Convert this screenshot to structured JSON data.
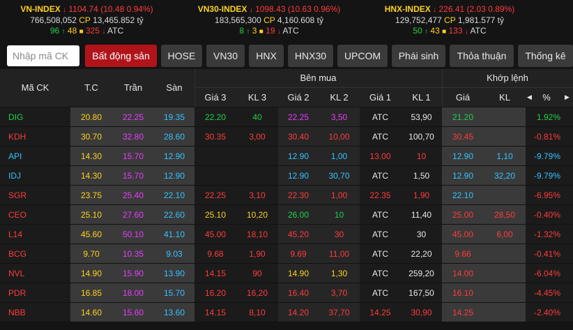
{
  "indices": [
    {
      "name": "VN-INDEX",
      "arrow": "↓",
      "value": "1104.74",
      "change": "(10.48 0.94%)",
      "volume": "766,508,052",
      "cp_label": "CP",
      "amount": "13,465.852 tỷ",
      "up": "96",
      "floor_or_ceil": "48",
      "down": "325",
      "atc": "ATC"
    },
    {
      "name": "VN30-INDEX",
      "arrow": "↓",
      "value": "1098.43",
      "change": "(10.63 0.96%)",
      "volume": "183,565,300",
      "cp_label": "CP",
      "amount": "4,160.608 tỷ",
      "up": "8",
      "floor_or_ceil": "3",
      "down": "19",
      "atc": "ATC"
    },
    {
      "name": "HNX-INDEX",
      "arrow": "↓",
      "value": "226.41",
      "change": "(2.03 0.89%)",
      "volume": "129,752,477",
      "cp_label": "CP",
      "amount": "1,981.577 tỷ",
      "up": "50",
      "floor_or_ceil": "43",
      "down": "133",
      "atc": "ATC"
    }
  ],
  "search": {
    "placeholder": "Nhập mã CK"
  },
  "tabs": [
    "Bất động sản",
    "HOSE",
    "VN30",
    "HNX",
    "HNX30",
    "UPCOM",
    "Phái sinh",
    "Thỏa thuận",
    "Thống kê"
  ],
  "header": {
    "symbol": "Mã CK",
    "ref": "T.C",
    "ceil": "Trần",
    "floor": "Sàn",
    "buy_group": "Bên mua",
    "match_group": "Khớp lệnh",
    "buy_cols": [
      "Giá 3",
      "KL 3",
      "Giá 2",
      "KL 2",
      "Giá 1",
      "KL 1"
    ],
    "match_cols": [
      "Giá",
      "KL",
      "%"
    ]
  },
  "rows": [
    {
      "sym": "DIG",
      "symc": "g",
      "tc": "20.80",
      "tran": "22.25",
      "san": "19.35",
      "g3": "22.20",
      "g3c": "g",
      "k3": "40",
      "k3c": "g",
      "g2": "22.25",
      "g2c": "p",
      "k2": "3,50",
      "k2c": "p",
      "g1": "ATC",
      "g1c": "w",
      "k1": "53,90",
      "k1c": "w",
      "mp": "21.20",
      "mpc": "g",
      "mk": "",
      "mkc": "g",
      "pct": "1.92%",
      "pctc": "g"
    },
    {
      "sym": "KDH",
      "symc": "r",
      "tc": "30.70",
      "tran": "32.80",
      "san": "28.60",
      "g3": "30.35",
      "g3c": "r",
      "k3": "3,00",
      "k3c": "r",
      "g2": "30.40",
      "g2c": "r",
      "k2": "10,00",
      "k2c": "r",
      "g1": "ATC",
      "g1c": "w",
      "k1": "100,70",
      "k1c": "w",
      "mp": "30.45",
      "mpc": "r",
      "mk": "",
      "mkc": "r",
      "pct": "-0.81%",
      "pctc": "r"
    },
    {
      "sym": "API",
      "symc": "b",
      "tc": "14.30",
      "tran": "15.70",
      "san": "12.90",
      "g3": "",
      "g3c": "w",
      "k3": "",
      "k3c": "w",
      "g2": "12.90",
      "g2c": "b",
      "k2": "1,00",
      "k2c": "b",
      "g1": "13.00",
      "g1c": "r",
      "k1": "10",
      "k1c": "r",
      "mp": "12.90",
      "mpc": "b",
      "mk": "1,10",
      "mkc": "b",
      "pct": "-9.79%",
      "pctc": "b"
    },
    {
      "sym": "IDJ",
      "symc": "b",
      "tc": "14.30",
      "tran": "15.70",
      "san": "12.90",
      "g3": "",
      "g3c": "w",
      "k3": "",
      "k3c": "w",
      "g2": "12.90",
      "g2c": "b",
      "k2": "30,70",
      "k2c": "b",
      "g1": "ATC",
      "g1c": "w",
      "k1": "1,50",
      "k1c": "w",
      "mp": "12.90",
      "mpc": "b",
      "mk": "32,20",
      "mkc": "b",
      "pct": "-9.79%",
      "pctc": "b"
    },
    {
      "sym": "SGR",
      "symc": "r",
      "tc": "23.75",
      "tran": "25.40",
      "san": "22.10",
      "g3": "22.25",
      "g3c": "r",
      "k3": "3,10",
      "k3c": "r",
      "g2": "22.30",
      "g2c": "r",
      "k2": "1,00",
      "k2c": "r",
      "g1": "22.35",
      "g1c": "r",
      "k1": "1,90",
      "k1c": "r",
      "mp": "22.10",
      "mpc": "b",
      "mk": "",
      "mkc": "b",
      "pct": "-6.95%",
      "pctc": "r"
    },
    {
      "sym": "CEO",
      "symc": "r",
      "tc": "25.10",
      "tran": "27.60",
      "san": "22.60",
      "g3": "25.10",
      "g3c": "y",
      "k3": "10,20",
      "k3c": "y",
      "g2": "26.00",
      "g2c": "g",
      "k2": "10",
      "k2c": "g",
      "g1": "ATC",
      "g1c": "w",
      "k1": "11,40",
      "k1c": "w",
      "mp": "25.00",
      "mpc": "r",
      "mk": "28,50",
      "mkc": "r",
      "pct": "-0.40%",
      "pctc": "r"
    },
    {
      "sym": "L14",
      "symc": "r",
      "tc": "45.60",
      "tran": "50.10",
      "san": "41.10",
      "g3": "45.00",
      "g3c": "r",
      "k3": "18,10",
      "k3c": "r",
      "g2": "45.20",
      "g2c": "r",
      "k2": "30",
      "k2c": "r",
      "g1": "ATC",
      "g1c": "w",
      "k1": "30",
      "k1c": "w",
      "mp": "45.00",
      "mpc": "r",
      "mk": "6,00",
      "mkc": "r",
      "pct": "-1.32%",
      "pctc": "r"
    },
    {
      "sym": "BCG",
      "symc": "r",
      "tc": "9.70",
      "tran": "10.35",
      "san": "9.03",
      "g3": "9.68",
      "g3c": "r",
      "k3": "1,90",
      "k3c": "r",
      "g2": "9.69",
      "g2c": "r",
      "k2": "11,00",
      "k2c": "r",
      "g1": "ATC",
      "g1c": "w",
      "k1": "22,20",
      "k1c": "w",
      "mp": "9.66",
      "mpc": "r",
      "mk": "",
      "mkc": "r",
      "pct": "-0.41%",
      "pctc": "r"
    },
    {
      "sym": "NVL",
      "symc": "r",
      "tc": "14.90",
      "tran": "15.90",
      "san": "13.90",
      "g3": "14.15",
      "g3c": "r",
      "k3": "90",
      "k3c": "r",
      "g2": "14.90",
      "g2c": "y",
      "k2": "1,30",
      "k2c": "y",
      "g1": "ATC",
      "g1c": "w",
      "k1": "259,20",
      "k1c": "w",
      "mp": "14.00",
      "mpc": "r",
      "mk": "",
      "mkc": "r",
      "pct": "-6.04%",
      "pctc": "r"
    },
    {
      "sym": "PDR",
      "symc": "r",
      "tc": "16.85",
      "tran": "18.00",
      "san": "15.70",
      "g3": "16.20",
      "g3c": "r",
      "k3": "16,20",
      "k3c": "r",
      "g2": "16.40",
      "g2c": "r",
      "k2": "3,70",
      "k2c": "r",
      "g1": "ATC",
      "g1c": "w",
      "k1": "167,50",
      "k1c": "w",
      "mp": "16.10",
      "mpc": "r",
      "mk": "",
      "mkc": "r",
      "pct": "-4.45%",
      "pctc": "r"
    },
    {
      "sym": "NBB",
      "symc": "r",
      "tc": "14.60",
      "tran": "15.60",
      "san": "13.60",
      "g3": "14.15",
      "g3c": "r",
      "k3": "8,10",
      "k3c": "r",
      "g2": "14.20",
      "g2c": "r",
      "k2": "37,70",
      "k2c": "r",
      "g1": "14.25",
      "g1c": "r",
      "k1": "30,90",
      "k1c": "r",
      "mp": "14.25",
      "mpc": "r",
      "mk": "",
      "mkc": "r",
      "pct": "-2.40%",
      "pctc": "r"
    }
  ]
}
